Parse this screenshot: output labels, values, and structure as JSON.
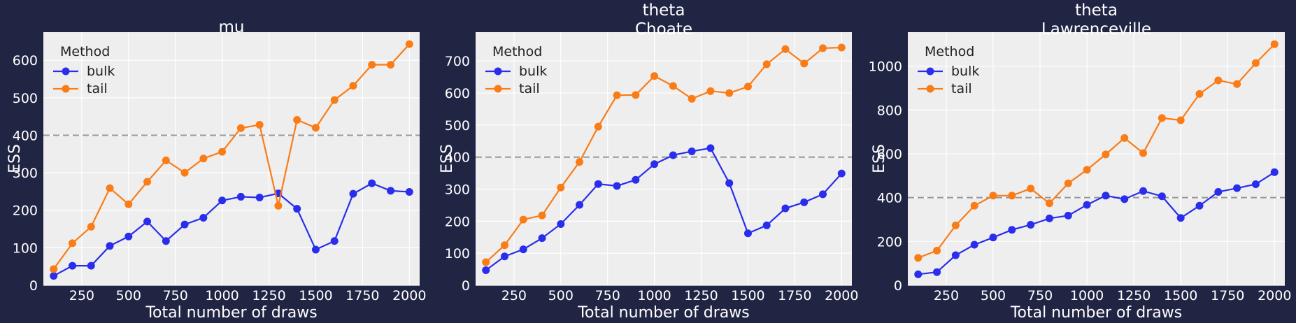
{
  "colors": {
    "figure_bg": "#212544",
    "axes_bg": "#eeeeee",
    "grid": "#ffffff",
    "bulk": "#2a2eec",
    "tail": "#fa7c17",
    "reference": "#999999"
  },
  "chart_data": [
    {
      "type": "line",
      "title": [
        "mu"
      ],
      "xlabel": "Total number of draws",
      "ylabel": "ESS",
      "xlim": [
        45,
        2055
      ],
      "ylim": [
        0,
        675
      ],
      "xticks": [
        250,
        500,
        750,
        1000,
        1250,
        1500,
        1750,
        2000
      ],
      "yticks": [
        0,
        100,
        200,
        300,
        400,
        500,
        600
      ],
      "reference_line": 400,
      "legend": {
        "title": "Method",
        "position": "top-left"
      },
      "x": [
        100,
        200,
        300,
        400,
        500,
        600,
        700,
        800,
        900,
        1000,
        1100,
        1200,
        1300,
        1400,
        1500,
        1600,
        1700,
        1800,
        1900,
        2000
      ],
      "series": [
        {
          "name": "bulk",
          "values": [
            25,
            52,
            52,
            105,
            130,
            170,
            118,
            162,
            180,
            226,
            236,
            234,
            245,
            204,
            95,
            118,
            244,
            272,
            252,
            249
          ]
        },
        {
          "name": "tail",
          "values": [
            43,
            112,
            156,
            259,
            216,
            276,
            333,
            300,
            338,
            356,
            419,
            428,
            212,
            441,
            420,
            494,
            532,
            588,
            588,
            643
          ]
        }
      ]
    },
    {
      "type": "line",
      "title": [
        "theta",
        "Choate"
      ],
      "xlabel": "Total number of draws",
      "ylabel": "ESS",
      "xlim": [
        45,
        2055
      ],
      "ylim": [
        0,
        790
      ],
      "xticks": [
        250,
        500,
        750,
        1000,
        1250,
        1500,
        1750,
        2000
      ],
      "yticks": [
        0,
        100,
        200,
        300,
        400,
        500,
        600,
        700
      ],
      "reference_line": 400,
      "legend": {
        "title": "Method",
        "position": "top-left"
      },
      "x": [
        100,
        200,
        300,
        400,
        500,
        600,
        700,
        800,
        900,
        1000,
        1100,
        1200,
        1300,
        1400,
        1500,
        1600,
        1700,
        1800,
        1900,
        2000
      ],
      "series": [
        {
          "name": "bulk",
          "values": [
            47,
            90,
            112,
            147,
            191,
            251,
            316,
            310,
            329,
            378,
            406,
            418,
            428,
            319,
            162,
            187,
            240,
            259,
            284,
            349
          ]
        },
        {
          "name": "tail",
          "values": [
            72,
            125,
            205,
            218,
            305,
            385,
            495,
            593,
            594,
            653,
            622,
            582,
            606,
            600,
            620,
            690,
            737,
            692,
            740,
            742
          ]
        }
      ]
    },
    {
      "type": "line",
      "title": [
        "theta",
        "Lawrenceville"
      ],
      "xlabel": "Total number of draws",
      "ylabel": "ESS",
      "xlim": [
        45,
        2055
      ],
      "ylim": [
        0,
        1155
      ],
      "xticks": [
        250,
        500,
        750,
        1000,
        1250,
        1500,
        1750,
        2000
      ],
      "yticks": [
        0,
        200,
        400,
        600,
        800,
        1000
      ],
      "reference_line": 400,
      "legend": {
        "title": "Method",
        "position": "top-left"
      },
      "x": [
        100,
        200,
        300,
        400,
        500,
        600,
        700,
        800,
        900,
        1000,
        1100,
        1200,
        1300,
        1400,
        1500,
        1600,
        1700,
        1800,
        1900,
        2000
      ],
      "series": [
        {
          "name": "bulk",
          "values": [
            50,
            60,
            137,
            185,
            218,
            253,
            276,
            305,
            318,
            367,
            409,
            393,
            430,
            406,
            307,
            363,
            426,
            443,
            461,
            516
          ]
        },
        {
          "name": "tail",
          "values": [
            125,
            158,
            273,
            363,
            409,
            409,
            441,
            374,
            465,
            527,
            597,
            672,
            603,
            763,
            753,
            873,
            935,
            918,
            1014,
            1100
          ]
        }
      ]
    }
  ]
}
